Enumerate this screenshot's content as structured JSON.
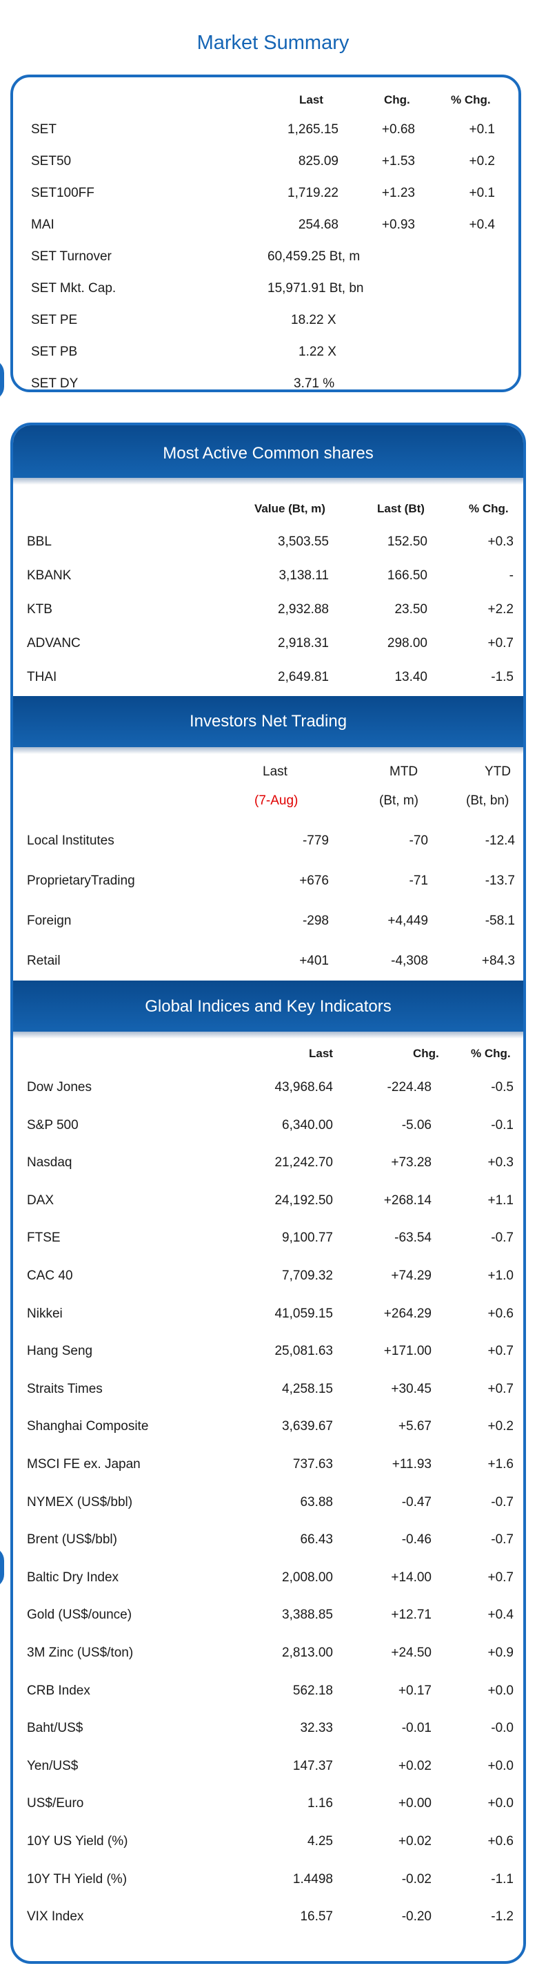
{
  "market_summary": {
    "title": "Market Summary",
    "headers": {
      "last": "Last",
      "chg": "Chg.",
      "pct": "% Chg."
    },
    "rows": [
      {
        "name": "SET",
        "last": "1,265.15",
        "chg": "+0.68",
        "pct": "+0.1"
      },
      {
        "name": "SET50",
        "last": "825.09",
        "chg": "+1.53",
        "pct": "+0.2"
      },
      {
        "name": "SET100FF",
        "last": "1,719.22",
        "chg": "+1.23",
        "pct": "+0.1"
      },
      {
        "name": "MAI",
        "last": "254.68",
        "chg": "+0.93",
        "pct": "+0.4"
      },
      {
        "name": "SET Turnover",
        "last": "60,459.25 Bt, m",
        "chg": "",
        "pct": ""
      },
      {
        "name": "SET Mkt. Cap.",
        "last": "15,971.91 Bt, bn",
        "chg": "",
        "pct": ""
      },
      {
        "name": "SET PE",
        "last": "18.22 X",
        "chg": "",
        "pct": ""
      },
      {
        "name": "SET PB",
        "last": "1.22 X",
        "chg": "",
        "pct": ""
      },
      {
        "name": "SET DY",
        "last": "3.71 %",
        "chg": "",
        "pct": ""
      }
    ]
  },
  "most_active": {
    "title": "Most Active Common shares",
    "headers": {
      "value": "Value (Bt, m)",
      "last": "Last (Bt)",
      "pct": "% Chg."
    },
    "rows": [
      {
        "name": "BBL",
        "value": "3,503.55",
        "last": "152.50",
        "pct": "+0.3"
      },
      {
        "name": "KBANK",
        "value": "3,138.11",
        "last": "166.50",
        "pct": "-"
      },
      {
        "name": "KTB",
        "value": "2,932.88",
        "last": "23.50",
        "pct": "+2.2"
      },
      {
        "name": "ADVANC",
        "value": "2,918.31",
        "last": "298.00",
        "pct": "+0.7"
      },
      {
        "name": "THAI",
        "value": "2,649.81",
        "last": "13.40",
        "pct": "-1.5"
      }
    ]
  },
  "investors": {
    "title": "Investors Net Trading",
    "headers": {
      "last": "Last",
      "mtd": "MTD",
      "ytd": "YTD"
    },
    "subheaders": {
      "last": "(7-Aug)",
      "mtd": "(Bt, m)",
      "ytd": "(Bt, bn)"
    },
    "rows": [
      {
        "name": "Local Institutes",
        "last": "-779",
        "mtd": "-70",
        "ytd": "-12.4"
      },
      {
        "name": "ProprietaryTrading",
        "last": "+676",
        "mtd": "-71",
        "ytd": "-13.7"
      },
      {
        "name": "Foreign",
        "last": "-298",
        "mtd": "+4,449",
        "ytd": "-58.1"
      },
      {
        "name": "Retail",
        "last": "+401",
        "mtd": "-4,308",
        "ytd": "+84.3"
      }
    ]
  },
  "global": {
    "title": "Global Indices and Key Indicators",
    "headers": {
      "last": "Last",
      "chg": "Chg.",
      "pct": "% Chg."
    },
    "rows": [
      {
        "name": "Dow Jones",
        "last": "43,968.64",
        "chg": "-224.48",
        "pct": "-0.5"
      },
      {
        "name": "S&P 500",
        "last": "6,340.00",
        "chg": "-5.06",
        "pct": "-0.1"
      },
      {
        "name": "Nasdaq",
        "last": "21,242.70",
        "chg": "+73.28",
        "pct": "+0.3"
      },
      {
        "name": "DAX",
        "last": "24,192.50",
        "chg": "+268.14",
        "pct": "+1.1"
      },
      {
        "name": "FTSE",
        "last": "9,100.77",
        "chg": "-63.54",
        "pct": "-0.7"
      },
      {
        "name": "CAC 40",
        "last": "7,709.32",
        "chg": "+74.29",
        "pct": "+1.0"
      },
      {
        "name": "Nikkei",
        "last": "41,059.15",
        "chg": "+264.29",
        "pct": "+0.6"
      },
      {
        "name": "Hang Seng",
        "last": "25,081.63",
        "chg": "+171.00",
        "pct": "+0.7"
      },
      {
        "name": "Straits Times",
        "last": "4,258.15",
        "chg": "+30.45",
        "pct": "+0.7"
      },
      {
        "name": "Shanghai Composite",
        "last": "3,639.67",
        "chg": "+5.67",
        "pct": "+0.2"
      },
      {
        "name": "MSCI FE ex. Japan",
        "last": "737.63",
        "chg": "+11.93",
        "pct": "+1.6"
      },
      {
        "name": "NYMEX (US$/bbl)",
        "last": "63.88",
        "chg": "-0.47",
        "pct": "-0.7"
      },
      {
        "name": "Brent (US$/bbl)",
        "last": "66.43",
        "chg": "-0.46",
        "pct": "-0.7"
      },
      {
        "name": "Baltic Dry Index",
        "last": "2,008.00",
        "chg": "+14.00",
        "pct": "+0.7"
      },
      {
        "name": "Gold (US$/ounce)",
        "last": "3,388.85",
        "chg": "+12.71",
        "pct": "+0.4"
      },
      {
        "name": "3M Zinc (US$/ton)",
        "last": "2,813.00",
        "chg": "+24.50",
        "pct": "+0.9"
      },
      {
        "name": "CRB Index",
        "last": "562.18",
        "chg": "+0.17",
        "pct": "+0.0"
      },
      {
        "name": "Baht/US$",
        "last": "32.33",
        "chg": "-0.01",
        "pct": "-0.0"
      },
      {
        "name": "Yen/US$",
        "last": "147.37",
        "chg": "+0.02",
        "pct": "+0.0"
      },
      {
        "name": "US$/Euro",
        "last": "1.16",
        "chg": "+0.00",
        "pct": "+0.0"
      },
      {
        "name": "10Y US Yield (%)",
        "last": "4.25",
        "chg": "+0.02",
        "pct": "+0.6"
      },
      {
        "name": "10Y TH Yield (%)",
        "last": "1.4498",
        "chg": "-0.02",
        "pct": "-1.1"
      },
      {
        "name": "VIX Index",
        "last": "16.57",
        "chg": "-0.20",
        "pct": "-1.2"
      }
    ]
  }
}
